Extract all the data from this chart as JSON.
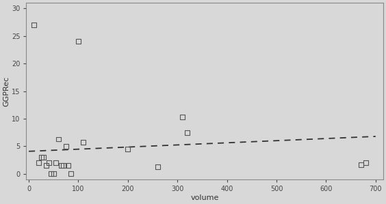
{
  "x": [
    10,
    20,
    25,
    30,
    35,
    40,
    45,
    50,
    55,
    60,
    65,
    70,
    75,
    80,
    85,
    100,
    110,
    200,
    260,
    310,
    320,
    670,
    680
  ],
  "y": [
    27,
    2,
    3,
    3,
    1.5,
    2,
    0,
    0,
    2,
    6.3,
    1.5,
    1.5,
    5,
    1.5,
    0,
    24,
    5.7,
    4.5,
    1.3,
    10.3,
    7.5,
    1.7,
    2
  ],
  "trend_x": [
    0,
    700
  ],
  "trend_y": [
    4.1,
    6.8
  ],
  "xlabel": "volume",
  "ylabel": "GGPRec",
  "xlim": [
    -5,
    715
  ],
  "ylim": [
    -1.0,
    31
  ],
  "xticks": [
    0,
    100,
    200,
    300,
    400,
    500,
    600,
    700
  ],
  "yticks": [
    0,
    5,
    10,
    15,
    20,
    25,
    30
  ],
  "plot_bg_color": "#d8d8d8",
  "outer_bg_color": "#d8d8d8",
  "marker_facecolor": "none",
  "marker_edge_color": "#555555",
  "line_color": "#333333",
  "marker_size": 5,
  "tick_fontsize": 7,
  "label_fontsize": 8,
  "spine_color": "#888888",
  "spine_linewidth": 0.8,
  "line_width": 1.3,
  "marker_linewidth": 0.8
}
